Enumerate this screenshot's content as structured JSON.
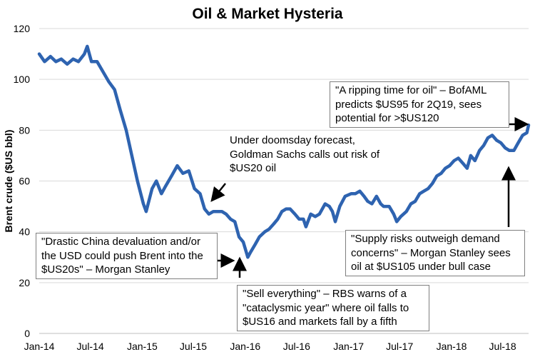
{
  "chart_data": {
    "type": "line",
    "title": "Oil & Market Hysteria",
    "xlabel": "",
    "ylabel": "Brent crude ($US bbl)",
    "ylim": [
      0,
      120
    ],
    "yticks": [
      0,
      20,
      40,
      60,
      80,
      100,
      120
    ],
    "xticks": [
      "Jan-14",
      "Jul-14",
      "Jan-15",
      "Jul-15",
      "Jan-16",
      "Jul-16",
      "Jan-17",
      "Jul-17",
      "Jan-18",
      "Jul-18"
    ],
    "xrange": [
      "2014-01",
      "2018-10"
    ],
    "grid": "horizontal",
    "legend": "none",
    "line_color": "#2e63b0",
    "series": [
      {
        "x": [
          "2014-01-01",
          "2014-01-20",
          "2014-02-10",
          "2014-03-01",
          "2014-03-20",
          "2014-04-10",
          "2014-05-01",
          "2014-05-20",
          "2014-06-10",
          "2014-06-20",
          "2014-07-05",
          "2014-07-25",
          "2014-08-15",
          "2014-09-05",
          "2014-09-25",
          "2014-10-15",
          "2014-11-05",
          "2014-11-25",
          "2014-12-15",
          "2015-01-05",
          "2015-01-15",
          "2015-02-05",
          "2015-02-20",
          "2015-03-10",
          "2015-03-25",
          "2015-04-15",
          "2015-05-05",
          "2015-05-25",
          "2015-06-15",
          "2015-07-05",
          "2015-07-25",
          "2015-08-10",
          "2015-08-25",
          "2015-09-10",
          "2015-09-25",
          "2015-10-10",
          "2015-10-25",
          "2015-11-10",
          "2015-11-25",
          "2015-12-10",
          "2015-12-25",
          "2016-01-10",
          "2016-01-20",
          "2016-02-05",
          "2016-02-20",
          "2016-03-10",
          "2016-03-25",
          "2016-04-10",
          "2016-04-25",
          "2016-05-10",
          "2016-05-25",
          "2016-06-08",
          "2016-06-25",
          "2016-07-10",
          "2016-07-25",
          "2016-08-03",
          "2016-08-20",
          "2016-09-05",
          "2016-09-20",
          "2016-10-10",
          "2016-10-25",
          "2016-11-05",
          "2016-11-15",
          "2016-12-01",
          "2016-12-20",
          "2017-01-10",
          "2017-01-25",
          "2017-02-10",
          "2017-02-25",
          "2017-03-10",
          "2017-03-25",
          "2017-04-10",
          "2017-04-25",
          "2017-05-05",
          "2017-05-25",
          "2017-06-10",
          "2017-06-21",
          "2017-07-05",
          "2017-07-25",
          "2017-08-10",
          "2017-08-25",
          "2017-09-10",
          "2017-09-25",
          "2017-10-10",
          "2017-10-25",
          "2017-11-10",
          "2017-11-25",
          "2017-12-10",
          "2017-12-25",
          "2018-01-10",
          "2018-01-25",
          "2018-02-10",
          "2018-02-25",
          "2018-03-10",
          "2018-03-25",
          "2018-04-10",
          "2018-04-25",
          "2018-05-10",
          "2018-05-25",
          "2018-06-10",
          "2018-06-25",
          "2018-07-10",
          "2018-07-25",
          "2018-08-10",
          "2018-08-25",
          "2018-09-10",
          "2018-09-25",
          "2018-10-01"
        ],
        "y": [
          110,
          107,
          109,
          107,
          108,
          106,
          108,
          107,
          110,
          113,
          107,
          107,
          103,
          99,
          96,
          88,
          80,
          70,
          60,
          51,
          48,
          57,
          60,
          55,
          58,
          62,
          66,
          63,
          64,
          57,
          55,
          49,
          47,
          48,
          48,
          48,
          47,
          45,
          44,
          38,
          36,
          30,
          32,
          35,
          38,
          40,
          41,
          43,
          45,
          48,
          49,
          49,
          47,
          45,
          45,
          42,
          47,
          46,
          47,
          51,
          50,
          48,
          44,
          50,
          54,
          55,
          55,
          56,
          54,
          52,
          51,
          54,
          51,
          50,
          50,
          47,
          44,
          46,
          48,
          51,
          52,
          55,
          56,
          57,
          59,
          62,
          63,
          65,
          66,
          68,
          69,
          67,
          65,
          70,
          68,
          72,
          74,
          77,
          78,
          76,
          75,
          73,
          72,
          72,
          75,
          78,
          79,
          82
        ]
      }
    ],
    "annotations": [
      {
        "text": "\"A ripping time for oil\" – BofAML predicts $US95 for 2Q19, sees potential for >$US120",
        "boxed": true
      },
      {
        "text": "Under doomsday forecast, Goldman Sachs calls out risk of $US20 oil",
        "boxed": false
      },
      {
        "text": "\"Drastic China devaluation and/or the USD could push Brent into the $US20s\" – Morgan Stanley",
        "boxed": true
      },
      {
        "text": "\"Sell everything\" – RBS warns of a \"cataclysmic year\" where oil falls to $US16 and markets fall by a fifth",
        "boxed": true
      },
      {
        "text": "\"Supply risks outweigh demand concerns\" – Morgan Stanley sees oil at $US105 under bull case",
        "boxed": true
      }
    ]
  }
}
